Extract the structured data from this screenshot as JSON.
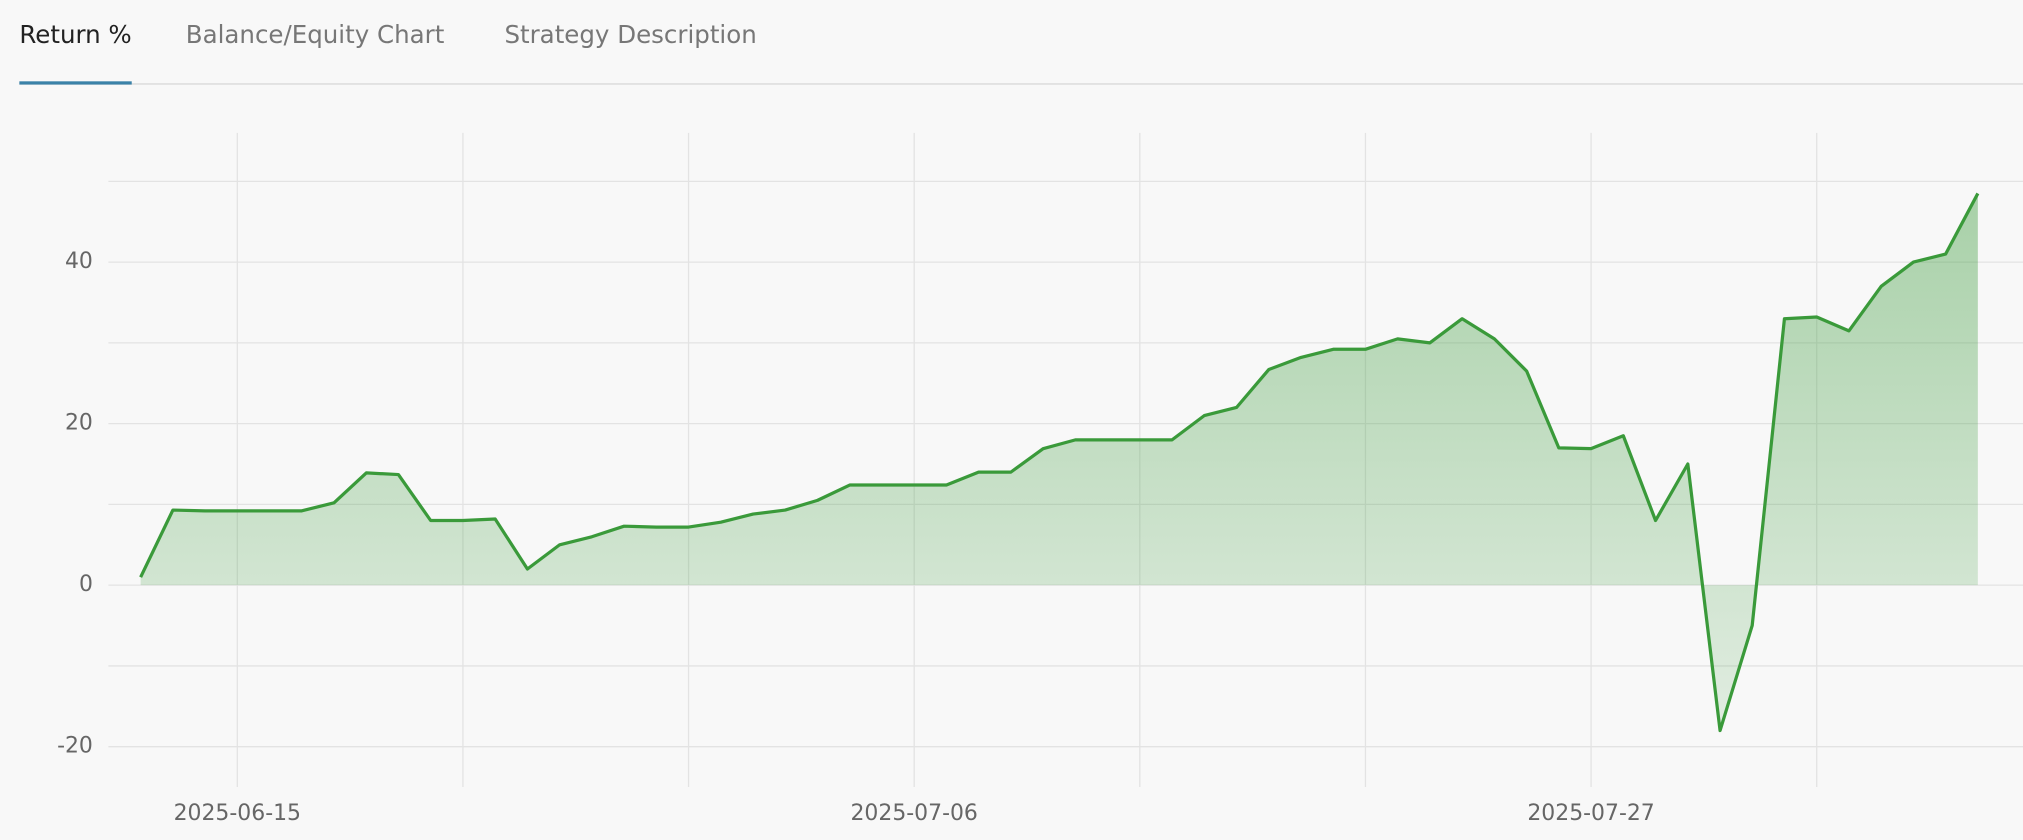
{
  "tabs": [
    "Return %",
    "Balance/Equity Chart",
    "Strategy Description"
  ],
  "active_tab": 0,
  "chart_data": {
    "type": "area",
    "color": "#3a9a3a",
    "x": [
      "2025-06-12",
      "2025-06-13",
      "2025-06-14",
      "2025-06-15",
      "2025-06-16",
      "2025-06-17",
      "2025-06-18",
      "2025-06-19",
      "2025-06-20",
      "2025-06-21",
      "2025-06-22",
      "2025-06-23",
      "2025-06-24",
      "2025-06-25",
      "2025-06-26",
      "2025-06-27",
      "2025-06-28",
      "2025-06-29",
      "2025-06-30",
      "2025-07-01",
      "2025-07-02",
      "2025-07-03",
      "2025-07-04",
      "2025-07-05",
      "2025-07-06",
      "2025-07-07",
      "2025-07-08",
      "2025-07-09",
      "2025-07-10",
      "2025-07-11",
      "2025-07-12",
      "2025-07-13",
      "2025-07-14",
      "2025-07-15",
      "2025-07-16",
      "2025-07-17",
      "2025-07-18",
      "2025-07-19",
      "2025-07-20",
      "2025-07-21",
      "2025-07-22",
      "2025-07-23",
      "2025-07-24",
      "2025-07-25",
      "2025-07-26",
      "2025-07-27",
      "2025-07-28",
      "2025-07-29",
      "2025-07-30",
      "2025-07-31",
      "2025-08-01",
      "2025-08-02",
      "2025-08-03",
      "2025-08-04",
      "2025-08-05",
      "2025-08-06",
      "2025-08-07",
      "2025-08-08"
    ],
    "values": [
      1,
      9.3,
      9.2,
      9.2,
      9.2,
      9.2,
      10.2,
      13.9,
      13.7,
      8.0,
      8.0,
      8.2,
      2.0,
      5.0,
      6.0,
      7.3,
      7.2,
      7.2,
      7.8,
      8.8,
      9.3,
      10.5,
      12.4,
      12.4,
      12.4,
      12.4,
      14.0,
      14.0,
      16.9,
      18.0,
      18.0,
      18.0,
      18.0,
      21,
      22.0,
      26.7,
      28.2,
      29.2,
      29.2,
      30.5,
      30.0,
      33.0,
      30.5,
      26.5,
      17.0,
      16.9,
      18.5,
      8.0,
      15,
      -18,
      -5,
      33,
      33.2,
      31.5,
      37,
      40,
      41,
      48.5
    ],
    "xlim": [
      "2025-06-11",
      "2025-08-09"
    ],
    "xticks": [
      "2025-06-15",
      "2025-07-06",
      "2025-07-27"
    ],
    "xgrid": [
      "2025-06-15",
      "2025-06-22",
      "2025-06-29",
      "2025-07-06",
      "2025-07-13",
      "2025-07-20",
      "2025-07-27",
      "2025-08-03"
    ],
    "ylim": [
      -25,
      56
    ],
    "yticks": [
      -20,
      0,
      20,
      40
    ],
    "ygrid": [
      -20,
      -10,
      0,
      10,
      20,
      30,
      40,
      50
    ]
  }
}
